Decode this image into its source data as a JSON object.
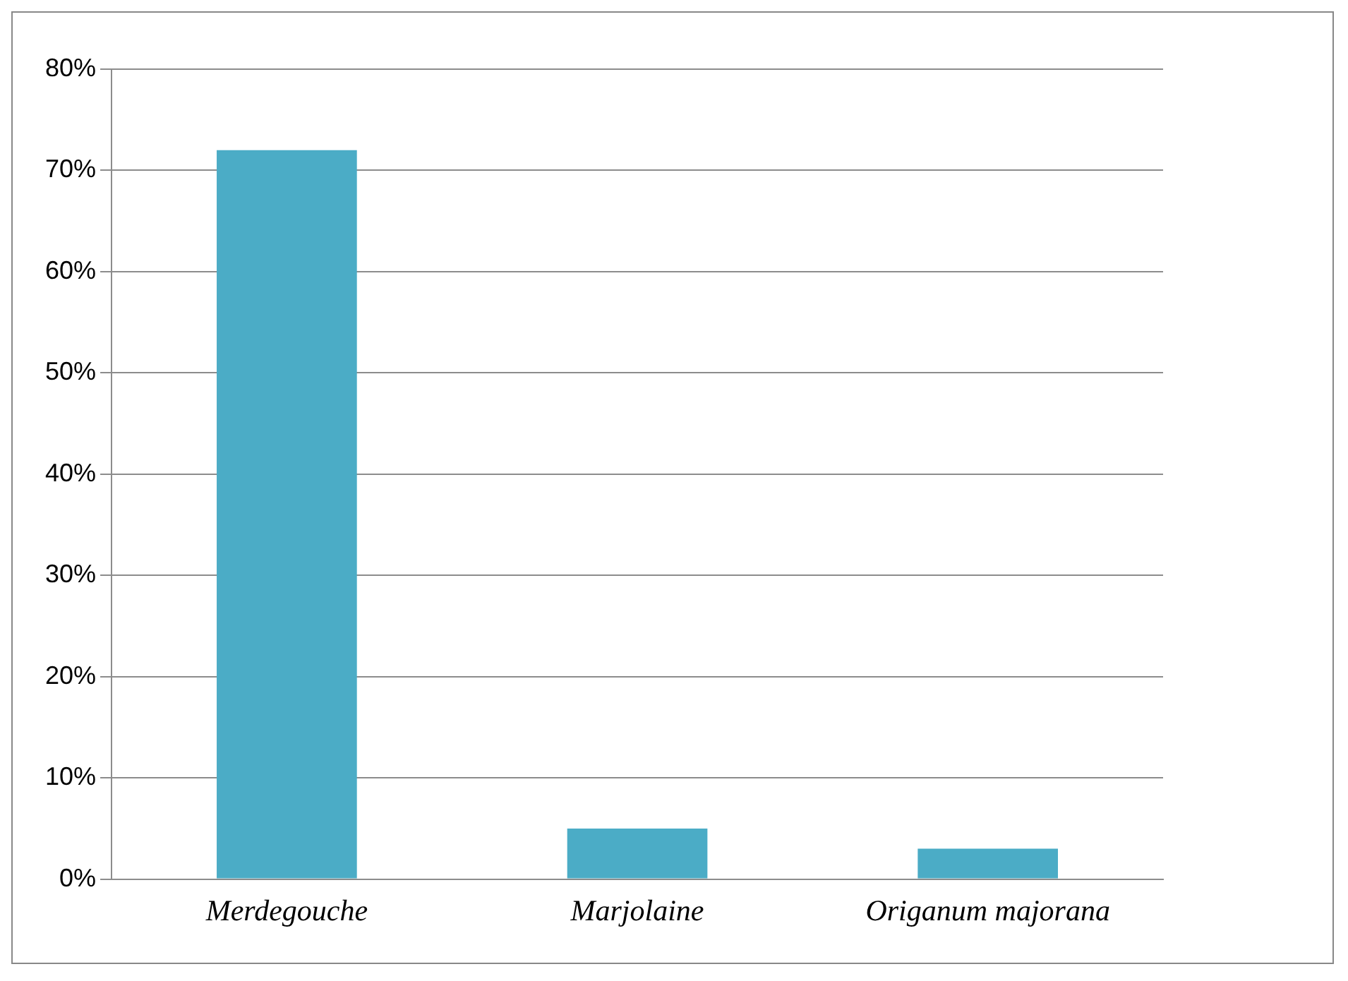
{
  "chart_data": {
    "type": "bar",
    "categories": [
      "Merdegouche",
      "Marjolaine",
      "Origanum majorana"
    ],
    "values": [
      72,
      5,
      3
    ],
    "color": "#4bacc6",
    "ylim": [
      0,
      80
    ],
    "yticks": [
      {
        "value": 0,
        "label": "0%"
      },
      {
        "value": 10,
        "label": "10%"
      },
      {
        "value": 20,
        "label": "20%"
      },
      {
        "value": 30,
        "label": "30%"
      },
      {
        "value": 40,
        "label": "40%"
      },
      {
        "value": 50,
        "label": "50%"
      },
      {
        "value": 60,
        "label": "60%"
      },
      {
        "value": 70,
        "label": "70%"
      },
      {
        "value": 80,
        "label": "80%"
      }
    ],
    "grid": "y",
    "legend": false
  }
}
